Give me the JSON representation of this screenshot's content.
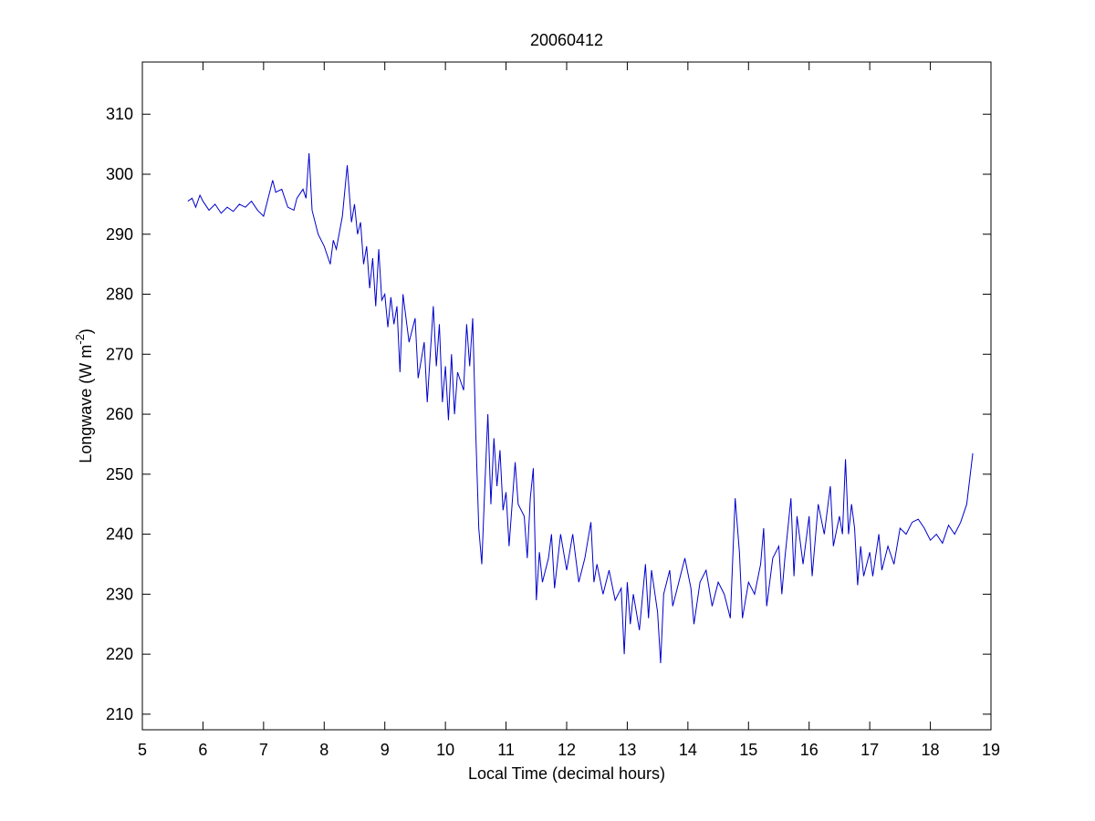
{
  "chart_data": {
    "type": "line",
    "title": "20060412",
    "xlabel": "Local Time (decimal hours)",
    "ylabel": {
      "text": "Longwave (W m",
      "superscript": "-2",
      "suffix": ")"
    },
    "xlim": [
      5,
      19
    ],
    "xticks": [
      5,
      6,
      7,
      8,
      9,
      10,
      11,
      12,
      13,
      14,
      15,
      16,
      17,
      18,
      19
    ],
    "ylim": [
      207.4,
      318.7
    ],
    "yticks": [
      210,
      220,
      230,
      240,
      250,
      260,
      270,
      280,
      290,
      300,
      310
    ],
    "series": [
      {
        "color": "#0000cc",
        "x": [
          5.75,
          5.82,
          5.88,
          5.95,
          6.0,
          6.1,
          6.2,
          6.3,
          6.4,
          6.5,
          6.6,
          6.7,
          6.8,
          6.9,
          7.0,
          7.05,
          7.15,
          7.2,
          7.3,
          7.4,
          7.5,
          7.55,
          7.65,
          7.7,
          7.75,
          7.8,
          7.9,
          8.0,
          8.1,
          8.15,
          8.2,
          8.3,
          8.38,
          8.45,
          8.5,
          8.55,
          8.6,
          8.65,
          8.7,
          8.75,
          8.8,
          8.85,
          8.9,
          8.95,
          9.0,
          9.05,
          9.1,
          9.15,
          9.2,
          9.25,
          9.3,
          9.4,
          9.5,
          9.55,
          9.65,
          9.7,
          9.8,
          9.85,
          9.9,
          9.95,
          10.0,
          10.05,
          10.1,
          10.15,
          10.2,
          10.3,
          10.35,
          10.4,
          10.45,
          10.5,
          10.55,
          10.6,
          10.65,
          10.7,
          10.75,
          10.8,
          10.85,
          10.9,
          10.95,
          11.0,
          11.05,
          11.1,
          11.15,
          11.2,
          11.3,
          11.35,
          11.4,
          11.45,
          11.5,
          11.55,
          11.6,
          11.7,
          11.75,
          11.8,
          11.9,
          12.0,
          12.1,
          12.2,
          12.3,
          12.4,
          12.45,
          12.5,
          12.6,
          12.7,
          12.8,
          12.9,
          12.95,
          13.0,
          13.05,
          13.1,
          13.2,
          13.3,
          13.35,
          13.4,
          13.5,
          13.55,
          13.6,
          13.7,
          13.75,
          13.85,
          13.95,
          14.05,
          14.1,
          14.2,
          14.3,
          14.4,
          14.5,
          14.6,
          14.7,
          14.78,
          14.85,
          14.9,
          15.0,
          15.1,
          15.2,
          15.25,
          15.3,
          15.4,
          15.5,
          15.55,
          15.6,
          15.7,
          15.75,
          15.8,
          15.9,
          16.0,
          16.05,
          16.15,
          16.25,
          16.35,
          16.4,
          16.5,
          16.55,
          16.6,
          16.65,
          16.7,
          16.75,
          16.8,
          16.85,
          16.9,
          17.0,
          17.05,
          17.15,
          17.2,
          17.3,
          17.4,
          17.5,
          17.6,
          17.7,
          17.8,
          17.9,
          18.0,
          18.1,
          18.2,
          18.3,
          18.4,
          18.5,
          18.6,
          18.7
        ],
        "values": [
          295.5,
          296,
          294.5,
          296.5,
          295.5,
          294,
          295,
          293.5,
          294.5,
          293.8,
          295,
          294.5,
          295.5,
          294,
          293,
          295,
          299,
          297,
          297.5,
          294.5,
          294,
          296,
          297.5,
          296,
          303.5,
          294,
          290,
          288,
          285,
          289,
          287.5,
          293,
          301.5,
          292,
          295,
          290,
          292,
          285,
          288,
          281,
          286,
          278,
          287.5,
          279,
          280,
          274.5,
          279.5,
          275,
          278,
          267,
          280,
          272,
          276,
          266,
          272,
          262,
          278,
          268,
          275,
          262,
          268,
          259,
          270,
          260,
          267,
          264,
          275,
          268,
          276,
          257,
          241,
          235,
          248,
          260,
          245,
          256,
          248,
          254,
          244,
          247,
          238,
          245,
          252,
          245,
          243,
          236,
          246,
          251,
          229,
          237,
          232,
          236,
          240,
          231,
          240,
          234,
          240,
          232,
          236,
          242,
          232,
          235,
          230,
          234,
          229,
          231,
          220,
          232,
          225,
          230,
          224,
          235,
          226,
          234,
          227,
          218.5,
          230,
          234,
          228,
          232,
          236,
          231,
          225,
          232,
          234,
          228,
          232,
          230,
          226,
          246,
          237,
          226,
          232,
          230,
          235,
          241,
          228,
          236,
          238,
          230,
          236,
          246,
          233,
          243,
          235,
          243,
          233,
          245,
          240,
          248,
          238,
          243,
          240,
          252.5,
          240,
          245,
          241,
          231.5,
          238,
          233,
          237,
          233,
          240,
          234,
          238,
          235,
          241,
          240,
          242,
          242.5,
          241,
          239,
          240,
          238.5,
          241.5,
          240,
          242,
          245,
          253.5
        ]
      }
    ]
  }
}
